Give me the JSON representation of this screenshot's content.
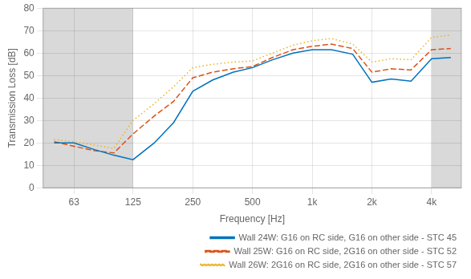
{
  "chart_data": {
    "type": "line",
    "xlabel": "Frequency [Hz]",
    "ylabel": "Transmission Loss [dB]",
    "x": [
      50,
      63,
      80,
      100,
      125,
      160,
      200,
      250,
      315,
      400,
      500,
      630,
      800,
      1000,
      1250,
      1600,
      2000,
      2500,
      3150,
      4000,
      5000
    ],
    "series": [
      {
        "name": "Wall 24W: G16 on RC side, G16 on other side - STC 45",
        "color": "#0072BD",
        "line_style": "solid",
        "values": [
          20.0,
          20.0,
          17.0,
          14.5,
          12.5,
          20.0,
          29.0,
          43.0,
          48.0,
          51.5,
          53.5,
          57.0,
          60.0,
          61.5,
          61.5,
          59.5,
          47.0,
          48.5,
          47.5,
          57.5,
          58.0
        ]
      },
      {
        "name": "Wall 25W: G16 on RC side, 2G16 on other side - STC 52",
        "color": "#D95319",
        "line_style": "dashed",
        "values": [
          20.5,
          18.5,
          16.5,
          15.5,
          24.0,
          32.0,
          38.5,
          49.0,
          51.5,
          53.0,
          54.0,
          58.0,
          61.5,
          63.0,
          64.0,
          62.0,
          51.5,
          53.0,
          52.5,
          61.5,
          62.0
        ]
      },
      {
        "name": "Wall 26W: 2G16 on RC side, 2G16 on other side - STC 57",
        "color": "#EDB120",
        "line_style": "dotted",
        "values": [
          21.5,
          20.5,
          19.0,
          17.5,
          30.0,
          37.5,
          45.0,
          53.5,
          55.0,
          56.0,
          56.5,
          60.0,
          63.5,
          65.5,
          66.5,
          64.0,
          56.0,
          57.5,
          57.0,
          67.0,
          68.0
        ]
      }
    ],
    "shaded": [
      {
        "x0": 44,
        "x1": 125,
        "color": "#d9d9d9"
      },
      {
        "x0": 4000,
        "x1": 5650,
        "color": "#d9d9d9"
      }
    ],
    "log": "x",
    "xlim": [
      44,
      5650
    ],
    "xticks": [
      63,
      125,
      250,
      500,
      {
        "value": 1000,
        "label": "1k"
      },
      {
        "value": 2000,
        "label": "2k"
      },
      {
        "value": 4000,
        "label": "4k"
      }
    ],
    "ylim": [
      0,
      80
    ],
    "yticks": [
      0,
      10,
      20,
      30,
      40,
      50,
      60,
      70,
      80
    ],
    "grid": true,
    "legend": "lower right"
  }
}
